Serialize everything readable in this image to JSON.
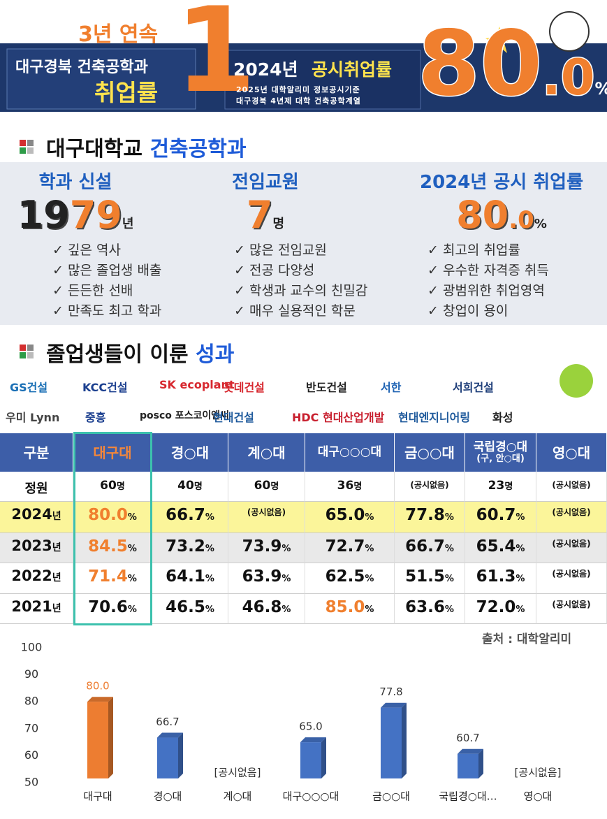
{
  "banner": {
    "streak": "3년 연속",
    "left_line1": "대구경북 건축공학과",
    "left_line2": "취업률",
    "big_number": "1",
    "headline_year": "2024년",
    "headline_title": "공시취업률",
    "source_line1": "2025년 대학알리미 정보공시기준",
    "source_line2": "대구경북 4년제 대학 건축공학계열",
    "rate_int": "80",
    "rate_dot": ".",
    "rate_dec": "0",
    "rate_unit": "%"
  },
  "section1": {
    "title_a": "대구대학교",
    "title_b": "건축공학과",
    "columns": [
      {
        "heading": "학과 신설",
        "value_parts": [
          {
            "text": "19",
            "color": "#222222"
          },
          {
            "text": "79",
            "color": "#f07f2e"
          }
        ],
        "unit": "년",
        "bullets": [
          "깊은 역사",
          "많은 졸업생 배출",
          "든든한 선배",
          "만족도 최고 학과"
        ]
      },
      {
        "heading": "전임교원",
        "value_parts": [
          {
            "text": "7",
            "color": "#f07f2e"
          }
        ],
        "unit": "명",
        "bullets": [
          "많은 전임교원",
          "전공 다양성",
          "학생과 교수의 친밀감",
          "매우 실용적인 학문"
        ]
      },
      {
        "heading": "2024년 공시 취업률",
        "value_parts": [
          {
            "text": "80",
            "color": "#f07f2e"
          },
          {
            "text": ".0",
            "color": "#f07f2e"
          }
        ],
        "unit": "%",
        "bullets": [
          "최고의 취업률",
          "우수한 자격증 취득",
          "광범위한 취업영역",
          "창업이 용이"
        ]
      }
    ]
  },
  "section2": {
    "title_a": "졸업생들이 이룬",
    "title_b": "성과",
    "logos": [
      [
        {
          "text": "GS건설",
          "color": "#1a6fb5"
        },
        {
          "text": "KCC건설",
          "color": "#1b3f8f"
        },
        {
          "text": "SK ecoplant",
          "color": "#d7282f"
        },
        {
          "text": "롯데건설",
          "color": "#d7282f"
        },
        {
          "text": "반도건설",
          "color": "#222222"
        },
        {
          "text": "서한",
          "color": "#1f63b3"
        },
        {
          "text": "서희건설",
          "color": "#1f3f7a"
        }
      ],
      [
        {
          "text": "우미 Lynn",
          "color": "#444444"
        },
        {
          "text": "중흥",
          "color": "#1b3f8f"
        },
        {
          "text": "posco 포스코이앤씨",
          "color": "#222222"
        },
        {
          "text": "현대건설",
          "color": "#1f5a9c"
        },
        {
          "text": "HDC 현대산업개발",
          "color": "#c8202f"
        },
        {
          "text": "현대엔지니어링",
          "color": "#1f5a9c"
        },
        {
          "text": "화성",
          "color": "#222222"
        }
      ]
    ]
  },
  "table": {
    "header": [
      {
        "text": "구분"
      },
      {
        "text": "대구대",
        "color": "#f5873a"
      },
      {
        "text": "경○대"
      },
      {
        "text": "계○대"
      },
      {
        "text": "대구○○○대"
      },
      {
        "text": "금○○대"
      },
      {
        "text": "국립경○대",
        "sub": "(구, 안○대)"
      },
      {
        "text": "영○대"
      }
    ],
    "rows": [
      {
        "label": "정원",
        "cells": [
          {
            "t": "60",
            "u": "명"
          },
          {
            "t": "40",
            "u": "명"
          },
          {
            "t": "60",
            "u": "명"
          },
          {
            "t": "36",
            "u": "명"
          },
          {
            "t": "(공시없음)"
          },
          {
            "t": "23",
            "u": "명"
          },
          {
            "t": "(공시없음)"
          }
        ]
      },
      {
        "label": "2024",
        "label_unit": "년",
        "background": "#fbf59a",
        "cells": [
          {
            "t": "80.0",
            "u": "%",
            "color": "#f07f2e"
          },
          {
            "t": "66.7",
            "u": "%"
          },
          {
            "t": "(공시없음)"
          },
          {
            "t": "65.0",
            "u": "%"
          },
          {
            "t": "77.8",
            "u": "%"
          },
          {
            "t": "60.7",
            "u": "%"
          },
          {
            "t": "(공시없음)"
          }
        ]
      },
      {
        "label": "2023",
        "label_unit": "년",
        "background": "#e9e9e9",
        "cells": [
          {
            "t": "84.5",
            "u": "%",
            "color": "#f07f2e"
          },
          {
            "t": "73.2",
            "u": "%"
          },
          {
            "t": "73.9",
            "u": "%"
          },
          {
            "t": "72.7",
            "u": "%"
          },
          {
            "t": "66.7",
            "u": "%"
          },
          {
            "t": "65.4",
            "u": "%"
          },
          {
            "t": "(공시없음)"
          }
        ]
      },
      {
        "label": "2022",
        "label_unit": "년",
        "cells": [
          {
            "t": "71.4",
            "u": "%",
            "color": "#f07f2e"
          },
          {
            "t": "64.1",
            "u": "%"
          },
          {
            "t": "63.9",
            "u": "%"
          },
          {
            "t": "62.5",
            "u": "%"
          },
          {
            "t": "51.5",
            "u": "%"
          },
          {
            "t": "61.3",
            "u": "%"
          },
          {
            "t": "(공시없음)"
          }
        ]
      },
      {
        "label": "2021",
        "label_unit": "년",
        "cells": [
          {
            "t": "70.6",
            "u": "%"
          },
          {
            "t": "46.5",
            "u": "%"
          },
          {
            "t": "46.8",
            "u": "%"
          },
          {
            "t": "85.0",
            "u": "%",
            "color": "#f07f2e"
          },
          {
            "t": "63.6",
            "u": "%"
          },
          {
            "t": "72.0",
            "u": "%"
          },
          {
            "t": "(공시없음)"
          }
        ]
      }
    ],
    "source": "출처 : 대학알리미"
  },
  "chart_data": {
    "type": "bar",
    "categories": [
      "대구대",
      "경○대",
      "계○대",
      "대구○○○대",
      "금○○대",
      "국립경○대…",
      "영○대"
    ],
    "values": [
      80.0,
      66.7,
      null,
      65.0,
      77.8,
      60.7,
      null
    ],
    "value_labels": [
      "80.0",
      "66.7",
      "[공시없음]",
      "65.0",
      "77.8",
      "60.7",
      "[공시없음]"
    ],
    "colors": [
      "#ed7d31",
      "#4472c4",
      "#4472c4",
      "#4472c4",
      "#4472c4",
      "#4472c4",
      "#4472c4"
    ],
    "ylim": [
      50,
      100
    ],
    "yticks": [
      50,
      60,
      70,
      80,
      90,
      100
    ],
    "grid": false
  }
}
